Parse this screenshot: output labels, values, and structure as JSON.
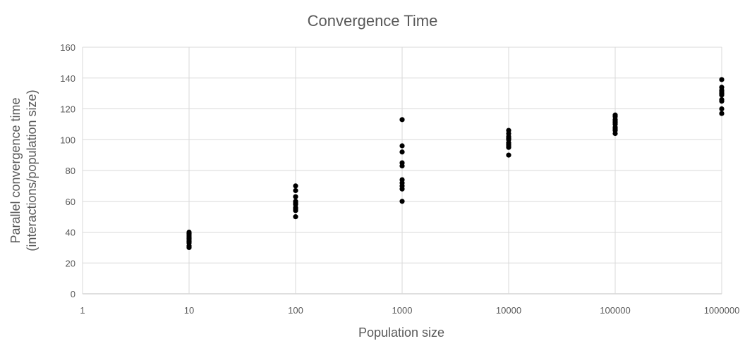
{
  "chart_data": {
    "type": "scatter",
    "title": "Convergence Time",
    "xlabel": "Population size",
    "ylabel": [
      "Parallel convergence time",
      "(interactions/population size)"
    ],
    "x_scale": "log10",
    "xlim": [
      1,
      1000000
    ],
    "ylim": [
      0,
      160
    ],
    "x_ticks": [
      "1",
      "10",
      "100",
      "1000",
      "10000",
      "100000",
      "1000000"
    ],
    "y_ticks": [
      "0",
      "20",
      "40",
      "60",
      "80",
      "100",
      "120",
      "140",
      "160"
    ],
    "grid": true,
    "legend": "none",
    "colors": {
      "points": "#000000",
      "grid": "#d9d9d9",
      "text": "#595959"
    },
    "series": [
      {
        "points": [
          {
            "x": 10,
            "y": 30
          },
          {
            "x": 10,
            "y": 31
          },
          {
            "x": 10,
            "y": 33
          },
          {
            "x": 10,
            "y": 34
          },
          {
            "x": 10,
            "y": 35
          },
          {
            "x": 10,
            "y": 36
          },
          {
            "x": 10,
            "y": 37
          },
          {
            "x": 10,
            "y": 38
          },
          {
            "x": 10,
            "y": 39
          },
          {
            "x": 10,
            "y": 40
          },
          {
            "x": 100,
            "y": 50
          },
          {
            "x": 100,
            "y": 54
          },
          {
            "x": 100,
            "y": 55
          },
          {
            "x": 100,
            "y": 56
          },
          {
            "x": 100,
            "y": 58
          },
          {
            "x": 100,
            "y": 59
          },
          {
            "x": 100,
            "y": 60
          },
          {
            "x": 100,
            "y": 63
          },
          {
            "x": 100,
            "y": 67
          },
          {
            "x": 100,
            "y": 70
          },
          {
            "x": 1000,
            "y": 60
          },
          {
            "x": 1000,
            "y": 68
          },
          {
            "x": 1000,
            "y": 70
          },
          {
            "x": 1000,
            "y": 72
          },
          {
            "x": 1000,
            "y": 74
          },
          {
            "x": 1000,
            "y": 83
          },
          {
            "x": 1000,
            "y": 85
          },
          {
            "x": 1000,
            "y": 92
          },
          {
            "x": 1000,
            "y": 96
          },
          {
            "x": 1000,
            "y": 113
          },
          {
            "x": 10000,
            "y": 90
          },
          {
            "x": 10000,
            "y": 95
          },
          {
            "x": 10000,
            "y": 96
          },
          {
            "x": 10000,
            "y": 97
          },
          {
            "x": 10000,
            "y": 98
          },
          {
            "x": 10000,
            "y": 100
          },
          {
            "x": 10000,
            "y": 101
          },
          {
            "x": 10000,
            "y": 102
          },
          {
            "x": 10000,
            "y": 104
          },
          {
            "x": 10000,
            "y": 106
          },
          {
            "x": 100000,
            "y": 104
          },
          {
            "x": 100000,
            "y": 106
          },
          {
            "x": 100000,
            "y": 107
          },
          {
            "x": 100000,
            "y": 108
          },
          {
            "x": 100000,
            "y": 110
          },
          {
            "x": 100000,
            "y": 111
          },
          {
            "x": 100000,
            "y": 112
          },
          {
            "x": 100000,
            "y": 113
          },
          {
            "x": 100000,
            "y": 115
          },
          {
            "x": 100000,
            "y": 116
          },
          {
            "x": 1000000,
            "y": 117
          },
          {
            "x": 1000000,
            "y": 120
          },
          {
            "x": 1000000,
            "y": 125
          },
          {
            "x": 1000000,
            "y": 126
          },
          {
            "x": 1000000,
            "y": 129
          },
          {
            "x": 1000000,
            "y": 130
          },
          {
            "x": 1000000,
            "y": 131
          },
          {
            "x": 1000000,
            "y": 132
          },
          {
            "x": 1000000,
            "y": 134
          },
          {
            "x": 1000000,
            "y": 139
          }
        ]
      }
    ]
  }
}
